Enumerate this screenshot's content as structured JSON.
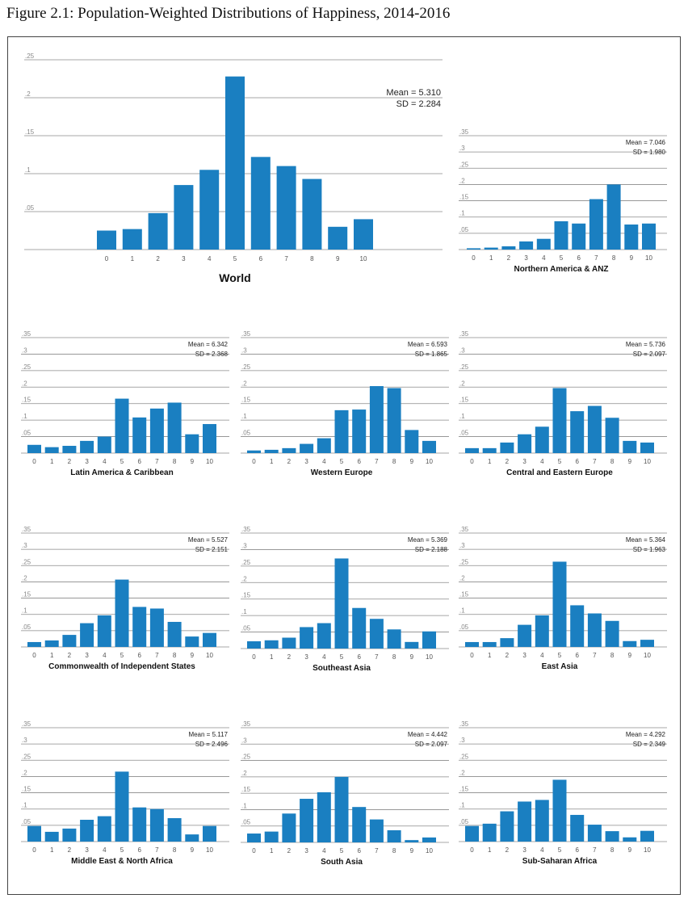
{
  "figure_title": "Figure 2.1: Population-Weighted Distributions of Happiness, 2014-2016",
  "colors": {
    "bar": "#1a7fc1",
    "grid": "#8a8a8a",
    "frame": "#444444"
  },
  "chart_data": [
    {
      "type": "bar",
      "title": "World",
      "mean_text": "Mean = 5.310",
      "sd_text": "SD = 2.284",
      "categories": [
        "0",
        "1",
        "2",
        "3",
        "4",
        "5",
        "6",
        "7",
        "8",
        "9",
        "10"
      ],
      "values": [
        0.025,
        0.027,
        0.048,
        0.085,
        0.105,
        0.228,
        0.122,
        0.11,
        0.093,
        0.03,
        0.04
      ],
      "ytick_labels": [
        ".05",
        ".1",
        ".15",
        ".2",
        ".25"
      ],
      "ylim": [
        0,
        0.25
      ]
    },
    {
      "type": "bar",
      "title": "Northern America & ANZ",
      "mean_text": "Mean = 7.046",
      "sd_text": "SD = 1.980",
      "categories": [
        "0",
        "1",
        "2",
        "3",
        "4",
        "5",
        "6",
        "7",
        "8",
        "9",
        "10"
      ],
      "values": [
        0.004,
        0.006,
        0.01,
        0.025,
        0.033,
        0.087,
        0.08,
        0.155,
        0.2,
        0.077,
        0.08
      ],
      "ytick_labels": [
        ".05",
        ".1",
        ".15",
        ".2",
        ".25",
        ".3",
        ".35"
      ],
      "ylim": [
        0,
        0.35
      ]
    },
    {
      "type": "bar",
      "title": "Latin America & Caribbean",
      "mean_text": "Mean = 6.342",
      "sd_text": "SD = 2.368",
      "categories": [
        "0",
        "1",
        "2",
        "3",
        "4",
        "5",
        "6",
        "7",
        "8",
        "9",
        "10"
      ],
      "values": [
        0.025,
        0.018,
        0.022,
        0.037,
        0.05,
        0.165,
        0.108,
        0.135,
        0.153,
        0.057,
        0.088
      ],
      "ytick_labels": [
        ".05",
        ".1",
        ".15",
        ".2",
        ".25",
        ".3",
        ".35"
      ],
      "ylim": [
        0,
        0.35
      ]
    },
    {
      "type": "bar",
      "title": "Western Europe",
      "mean_text": "Mean = 6.593",
      "sd_text": "SD = 1.865",
      "categories": [
        "0",
        "1",
        "2",
        "3",
        "4",
        "5",
        "6",
        "7",
        "8",
        "9",
        "10"
      ],
      "values": [
        0.008,
        0.01,
        0.015,
        0.028,
        0.045,
        0.13,
        0.132,
        0.203,
        0.197,
        0.07,
        0.037
      ],
      "ytick_labels": [
        ".05",
        ".1",
        ".15",
        ".2",
        ".25",
        ".3",
        ".35"
      ],
      "ylim": [
        0,
        0.35
      ]
    },
    {
      "type": "bar",
      "title": "Central and Eastern Europe",
      "mean_text": "Mean = 5.736",
      "sd_text": "SD = 2.097",
      "categories": [
        "0",
        "1",
        "2",
        "3",
        "4",
        "5",
        "6",
        "7",
        "8",
        "9",
        "10"
      ],
      "values": [
        0.015,
        0.015,
        0.032,
        0.057,
        0.08,
        0.197,
        0.127,
        0.143,
        0.107,
        0.037,
        0.032
      ],
      "ytick_labels": [
        ".05",
        ".1",
        ".15",
        ".2",
        ".25",
        ".3",
        ".35"
      ],
      "ylim": [
        0,
        0.35
      ]
    },
    {
      "type": "bar",
      "title": "Commonwealth of Independent States",
      "mean_text": "Mean = 5.527",
      "sd_text": "SD = 2.151",
      "categories": [
        "0",
        "1",
        "2",
        "3",
        "4",
        "5",
        "6",
        "7",
        "8",
        "9",
        "10"
      ],
      "values": [
        0.015,
        0.02,
        0.037,
        0.073,
        0.097,
        0.207,
        0.123,
        0.118,
        0.077,
        0.032,
        0.043
      ],
      "ytick_labels": [
        ".05",
        ".1",
        ".15",
        ".2",
        ".25",
        ".3",
        ".35"
      ],
      "ylim": [
        0,
        0.35
      ]
    },
    {
      "type": "bar",
      "title": "Southeast Asia",
      "mean_text": "Mean = 5.369",
      "sd_text": "SD = 2.188",
      "categories": [
        "0",
        "1",
        "2",
        "3",
        "4",
        "5",
        "6",
        "7",
        "8",
        "9",
        "10"
      ],
      "values": [
        0.022,
        0.025,
        0.033,
        0.065,
        0.077,
        0.273,
        0.123,
        0.09,
        0.058,
        0.02,
        0.052
      ],
      "ytick_labels": [
        ".05",
        ".1",
        ".15",
        ".2",
        ".25",
        ".3",
        ".35"
      ],
      "ylim": [
        0,
        0.35
      ]
    },
    {
      "type": "bar",
      "title": "East Asia",
      "mean_text": "Mean = 5.364",
      "sd_text": "SD = 1.963",
      "categories": [
        "0",
        "1",
        "2",
        "3",
        "4",
        "5",
        "6",
        "7",
        "8",
        "9",
        "10"
      ],
      "values": [
        0.015,
        0.015,
        0.027,
        0.068,
        0.097,
        0.262,
        0.128,
        0.103,
        0.08,
        0.018,
        0.022
      ],
      "ytick_labels": [
        ".05",
        ".1",
        ".15",
        ".2",
        ".25",
        ".3",
        ".35"
      ],
      "ylim": [
        0,
        0.35
      ]
    },
    {
      "type": "bar",
      "title": "Middle East & North Africa",
      "mean_text": "Mean = 5.117",
      "sd_text": "SD = 2.496",
      "categories": [
        "0",
        "1",
        "2",
        "3",
        "4",
        "5",
        "6",
        "7",
        "8",
        "9",
        "10"
      ],
      "values": [
        0.048,
        0.03,
        0.04,
        0.067,
        0.078,
        0.215,
        0.105,
        0.1,
        0.072,
        0.022,
        0.048
      ],
      "ytick_labels": [
        ".05",
        ".1",
        ".15",
        ".2",
        ".25",
        ".3",
        ".35"
      ],
      "ylim": [
        0,
        0.35
      ]
    },
    {
      "type": "bar",
      "title": "South Asia",
      "mean_text": "Mean = 4.442",
      "sd_text": "SD = 2.097",
      "categories": [
        "0",
        "1",
        "2",
        "3",
        "4",
        "5",
        "6",
        "7",
        "8",
        "9",
        "10"
      ],
      "values": [
        0.027,
        0.033,
        0.088,
        0.133,
        0.153,
        0.2,
        0.108,
        0.07,
        0.037,
        0.007,
        0.015
      ],
      "ytick_labels": [
        ".05",
        ".1",
        ".15",
        ".2",
        ".25",
        ".3",
        ".35"
      ],
      "ylim": [
        0,
        0.35
      ]
    },
    {
      "type": "bar",
      "title": "Sub-Saharan Africa",
      "mean_text": "Mean = 4.292",
      "sd_text": "SD = 2.349",
      "categories": [
        "0",
        "1",
        "2",
        "3",
        "4",
        "5",
        "6",
        "7",
        "8",
        "9",
        "10"
      ],
      "values": [
        0.048,
        0.055,
        0.093,
        0.123,
        0.128,
        0.19,
        0.082,
        0.052,
        0.032,
        0.013,
        0.033
      ],
      "ytick_labels": [
        ".05",
        ".1",
        ".15",
        ".2",
        ".25",
        ".3",
        ".35"
      ],
      "ylim": [
        0,
        0.35
      ]
    }
  ]
}
